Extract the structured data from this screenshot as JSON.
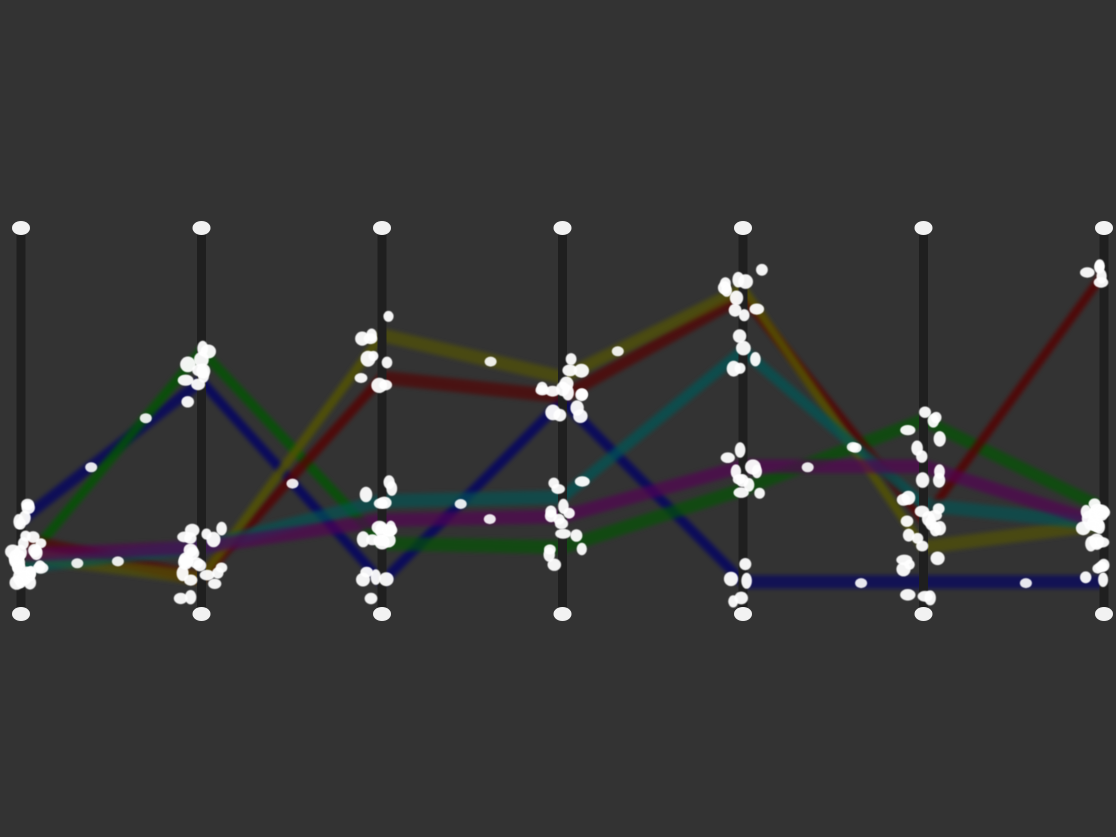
{
  "chart_data": {
    "type": "parallel-coordinates",
    "title": "",
    "axes_count": 7,
    "ylim": [
      0,
      1
    ],
    "background": "#333333",
    "axis_color": "#1f1f1f",
    "handle_color": "#f2f2f2",
    "series": [
      {
        "color": "#000066",
        "values": [
          0.24,
          0.6,
          0.08,
          0.55,
          0.08,
          0.08,
          0.08
        ]
      },
      {
        "color": "#005500",
        "values": [
          0.12,
          0.68,
          0.18,
          0.17,
          0.32,
          0.5,
          0.27
        ]
      },
      {
        "color": "#550000",
        "values": [
          0.19,
          0.09,
          0.61,
          0.56,
          0.82,
          0.24,
          0.88
        ]
      },
      {
        "color": "#555500",
        "values": [
          0.15,
          0.09,
          0.72,
          0.61,
          0.84,
          0.17,
          0.23
        ]
      },
      {
        "color": "#005555",
        "values": [
          0.12,
          0.17,
          0.29,
          0.3,
          0.68,
          0.28,
          0.23
        ]
      },
      {
        "color": "#550055",
        "values": [
          0.15,
          0.17,
          0.24,
          0.25,
          0.38,
          0.38,
          0.23
        ]
      }
    ],
    "bundle_width": 6
  }
}
